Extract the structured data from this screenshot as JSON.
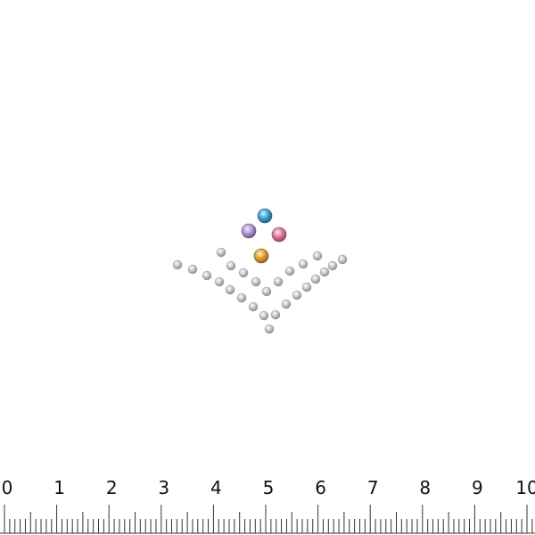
{
  "ruler": {
    "labels": [
      "0",
      "1",
      "2",
      "3",
      "4",
      "5",
      "6",
      "7",
      "8",
      "9",
      "10"
    ]
  }
}
